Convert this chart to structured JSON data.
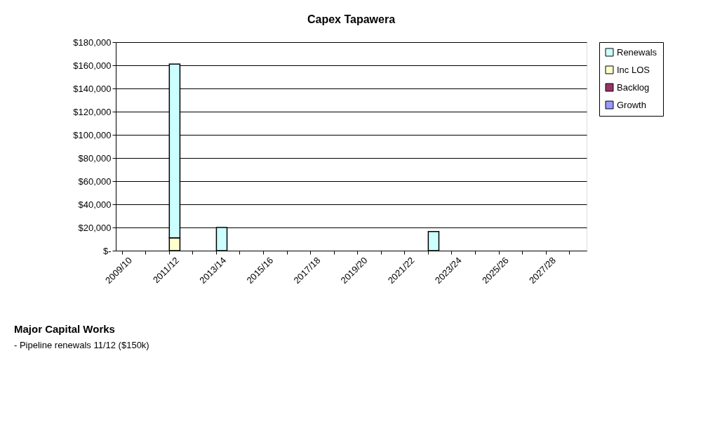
{
  "chart_data": {
    "type": "bar",
    "title": "Capex Tapawera",
    "stacked": true,
    "categories": [
      "2009/10",
      null,
      "2011/12",
      null,
      "2013/14",
      null,
      "2015/16",
      null,
      "2017/18",
      null,
      "2019/20",
      null,
      "2021/22",
      null,
      "2023/24",
      null,
      "2025/26",
      null,
      "2027/28",
      null
    ],
    "series": [
      {
        "name": "Growth",
        "color": "#9999ff",
        "values": [
          null,
          null,
          null,
          null,
          null,
          null,
          null,
          null,
          null,
          null,
          null,
          null,
          null,
          null,
          null,
          null,
          null,
          null,
          null,
          null
        ]
      },
      {
        "name": "Backlog",
        "color": "#993366",
        "values": [
          null,
          null,
          null,
          null,
          null,
          null,
          null,
          null,
          null,
          null,
          null,
          null,
          null,
          null,
          null,
          null,
          null,
          null,
          null,
          null
        ]
      },
      {
        "name": "Inc LOS",
        "color": "#ffffcc",
        "values": [
          null,
          null,
          11000,
          null,
          null,
          null,
          null,
          null,
          null,
          null,
          null,
          null,
          null,
          null,
          null,
          null,
          null,
          null,
          null,
          null
        ]
      },
      {
        "name": "Renewals",
        "color": "#ccffff",
        "values": [
          null,
          null,
          150000,
          null,
          20000,
          null,
          null,
          null,
          null,
          null,
          null,
          null,
          null,
          16500,
          null,
          null,
          null,
          null,
          null,
          null
        ]
      }
    ],
    "ylim": [
      0,
      180000
    ],
    "yticks": [
      {
        "value": 0,
        "label": "$-"
      },
      {
        "value": 20000,
        "label": "$20,000"
      },
      {
        "value": 40000,
        "label": "$40,000"
      },
      {
        "value": 60000,
        "label": "$60,000"
      },
      {
        "value": 80000,
        "label": "$80,000"
      },
      {
        "value": 100000,
        "label": "$100,000"
      },
      {
        "value": 120000,
        "label": "$120,000"
      },
      {
        "value": 140000,
        "label": "$140,000"
      },
      {
        "value": 160000,
        "label": "$160,000"
      },
      {
        "value": 180000,
        "label": "$180,000"
      }
    ],
    "grid": "y",
    "legend": "right",
    "annotations": [
      "Major Capital Works",
      "- Pipeline renewals 11/12 ($150k)"
    ]
  }
}
